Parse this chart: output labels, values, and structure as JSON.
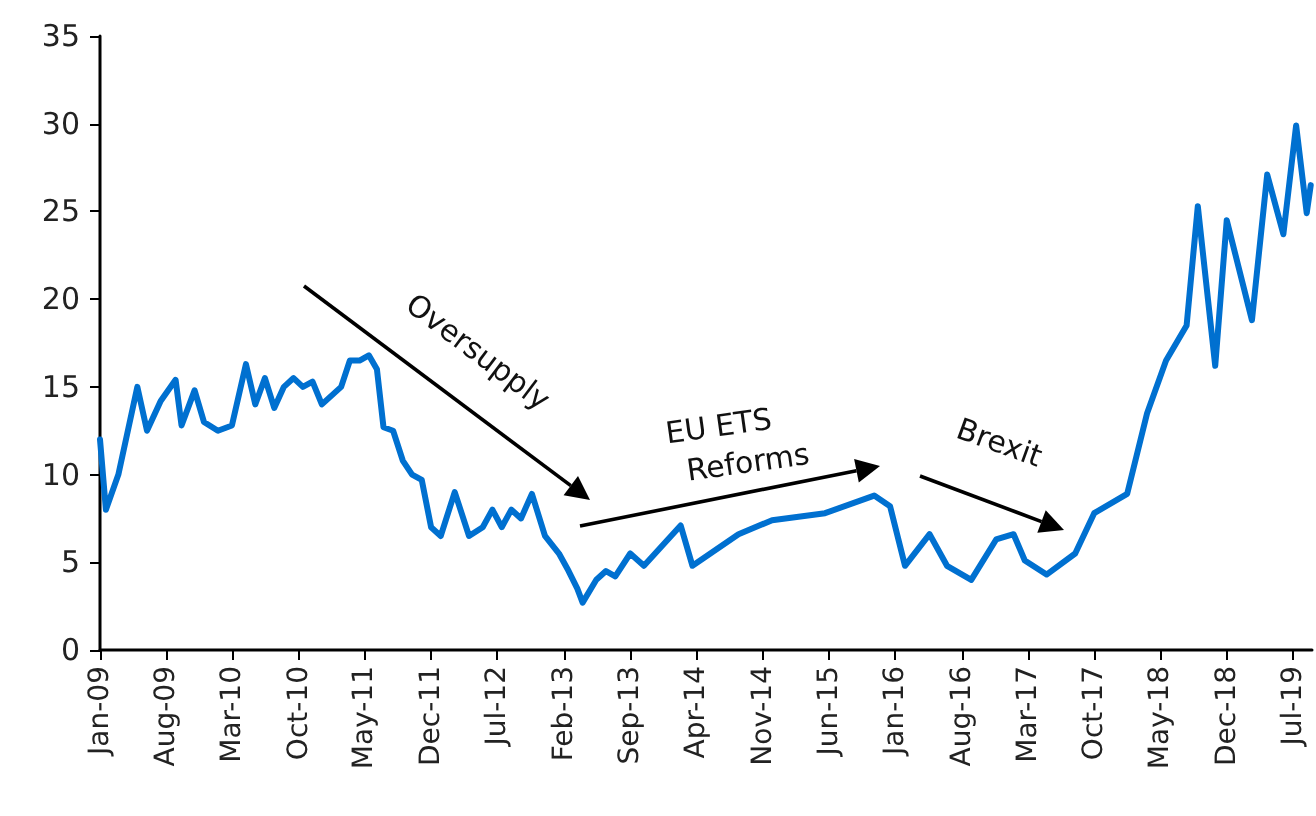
{
  "chart_data": {
    "type": "line",
    "xlim": [
      "2009-01",
      "2019-09"
    ],
    "ylim": [
      0,
      35
    ],
    "yticks": [
      0,
      5,
      10,
      15,
      20,
      25,
      30,
      35
    ],
    "xticks": [
      {
        "value": "2009-01",
        "label": "Jan-09"
      },
      {
        "value": "2009-08",
        "label": "Aug-09"
      },
      {
        "value": "2010-03",
        "label": "Mar-10"
      },
      {
        "value": "2010-10",
        "label": "Oct-10"
      },
      {
        "value": "2011-05",
        "label": "May-11"
      },
      {
        "value": "2011-12",
        "label": "Dec-11"
      },
      {
        "value": "2012-07",
        "label": "Jul-12"
      },
      {
        "value": "2013-02",
        "label": "Feb-13"
      },
      {
        "value": "2013-09",
        "label": "Sep-13"
      },
      {
        "value": "2014-04",
        "label": "Apr-14"
      },
      {
        "value": "2014-11",
        "label": "Nov-14"
      },
      {
        "value": "2015-06",
        "label": "Jun-15"
      },
      {
        "value": "2016-01",
        "label": "Jan-16"
      },
      {
        "value": "2016-08",
        "label": "Aug-16"
      },
      {
        "value": "2017-03",
        "label": "Mar-17"
      },
      {
        "value": "2017-10",
        "label": "Oct-17"
      },
      {
        "value": "2018-05",
        "label": "May-18"
      },
      {
        "value": "2018-12",
        "label": "Dec-18"
      },
      {
        "value": "2019-07",
        "label": "Jul-19"
      }
    ],
    "grid": false,
    "marker": "none",
    "line_style": "solid",
    "annotations": [
      "Oversupply",
      "EU ETS Reforms",
      "Brexit"
    ],
    "series": [
      {
        "color": "#0070d0",
        "x": [
          "2009-01-01",
          "2009-01-20",
          "2009-03-01",
          "2009-05-01",
          "2009-06-01",
          "2009-07-15",
          "2009-09-01",
          "2009-09-20",
          "2009-11-01",
          "2009-12-01",
          "2010-01-15",
          "2010-03-01",
          "2010-04-15",
          "2010-05-15",
          "2010-06-15",
          "2010-07-15",
          "2010-08-15",
          "2010-09-15",
          "2010-10-15",
          "2010-11-15",
          "2010-12-15",
          "2011-01-15",
          "2011-02-15",
          "2011-03-15",
          "2011-04-15",
          "2011-05-15",
          "2011-06-10",
          "2011-07-01",
          "2011-08-01",
          "2011-09-01",
          "2011-10-01",
          "2011-11-01",
          "2011-12-01",
          "2012-01-01",
          "2012-02-15",
          "2012-04-01",
          "2012-05-15",
          "2012-06-15",
          "2012-07-15",
          "2012-08-15",
          "2012-09-15",
          "2012-10-20",
          "2012-12-01",
          "2013-01-15",
          "2013-02-15",
          "2013-03-15",
          "2013-04-01",
          "2013-05-15",
          "2013-06-15",
          "2013-07-15",
          "2013-09-01",
          "2013-10-15",
          "2014-02-10",
          "2014-03-20",
          "2014-08-15",
          "2014-12-01",
          "2015-05-20",
          "2015-10-25",
          "2015-12-15",
          "2016-02-01",
          "2016-04-20",
          "2016-06-15",
          "2016-09-01",
          "2016-11-20",
          "2017-01-15",
          "2017-02-20",
          "2017-05-01",
          "2017-08-01",
          "2017-10-01",
          "2018-01-15",
          "2018-03-20",
          "2018-05-20",
          "2018-07-25",
          "2018-08-30",
          "2018-10-25",
          "2018-12-01",
          "2019-02-20",
          "2019-04-10",
          "2019-06-01",
          "2019-07-12",
          "2019-08-15",
          "2019-08-28"
        ],
        "values": [
          12,
          8,
          10,
          15,
          12.5,
          14.2,
          15.4,
          12.8,
          14.8,
          13,
          12.5,
          12.8,
          16.3,
          14,
          15.5,
          13.8,
          15,
          15.5,
          15,
          15.3,
          14,
          14.5,
          15,
          16.5,
          16.5,
          16.8,
          16,
          12.7,
          12.5,
          10.8,
          10,
          9.7,
          7,
          6.5,
          9,
          6.5,
          7,
          8,
          7,
          8,
          7.5,
          8.9,
          6.5,
          5.5,
          4.5,
          3.5,
          2.7,
          4,
          4.5,
          4.2,
          5.5,
          4.8,
          7.1,
          4.8,
          6.6,
          7.4,
          7.8,
          8.8,
          8.2,
          4.8,
          6.6,
          4.8,
          4,
          6.3,
          6.6,
          5.1,
          4.3,
          5.5,
          7.8,
          8.9,
          13.5,
          16.5,
          18.5,
          25.3,
          16.2,
          24.5,
          18.8,
          27.1,
          23.7,
          29.9,
          24.9,
          26.5
        ]
      }
    ]
  }
}
